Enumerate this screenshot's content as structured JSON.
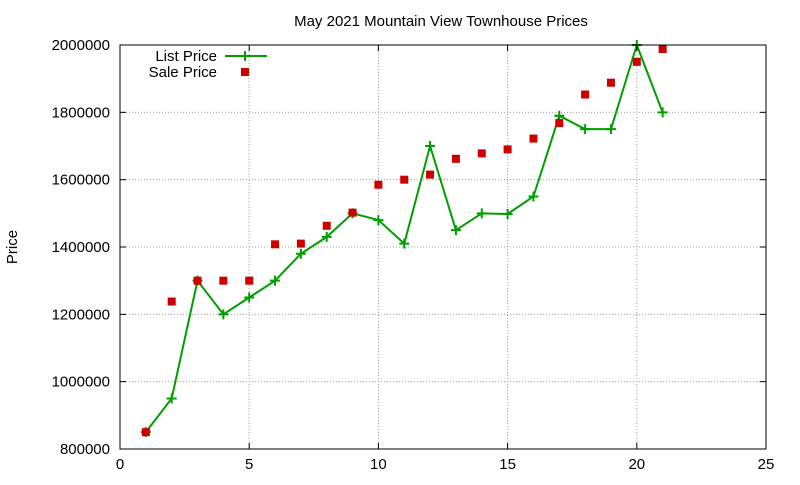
{
  "chart_data": {
    "type": "line",
    "title": "May 2021 Mountain View Townhouse Prices",
    "xlabel": "",
    "ylabel": "Price",
    "xlim": [
      0,
      25
    ],
    "ylim": [
      800000,
      2000000
    ],
    "xticks": [
      0,
      5,
      10,
      15,
      20,
      25
    ],
    "yticks": [
      800000,
      1000000,
      1200000,
      1400000,
      1600000,
      1800000,
      2000000
    ],
    "grid": true,
    "legend_position": "top-left",
    "series": [
      {
        "name": "List Price",
        "kind": "line+points",
        "marker": "plus",
        "color": "#009e00",
        "x": [
          1,
          2,
          3,
          4,
          5,
          6,
          7,
          8,
          9,
          10,
          11,
          12,
          13,
          14,
          15,
          16,
          17,
          18,
          19,
          20,
          21
        ],
        "values": [
          850000,
          950000,
          1300000,
          1200000,
          1250000,
          1300000,
          1380000,
          1430000,
          1500000,
          1480000,
          1410000,
          1700000,
          1450000,
          1500000,
          1498000,
          1550000,
          1790000,
          1750000,
          1750000,
          2000000,
          1800000
        ]
      },
      {
        "name": "Sale Price",
        "kind": "points",
        "marker": "square",
        "color": "#cc0000",
        "x": [
          1,
          2,
          3,
          4,
          5,
          6,
          7,
          8,
          9,
          10,
          11,
          12,
          13,
          14,
          15,
          16,
          17,
          18,
          19,
          20,
          21
        ],
        "values": [
          850000,
          1238000,
          1300000,
          1300000,
          1300000,
          1408000,
          1410000,
          1463000,
          1502000,
          1585000,
          1600000,
          1615000,
          1662000,
          1678000,
          1690000,
          1722000,
          1768000,
          1853000,
          1888000,
          1950000,
          1988000
        ]
      }
    ]
  }
}
